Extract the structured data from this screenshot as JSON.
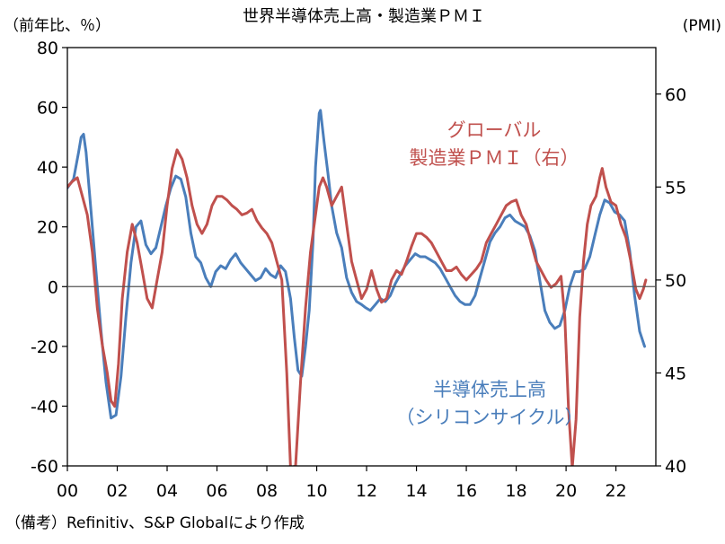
{
  "chart_data": {
    "type": "line",
    "title": "世界半導体売上高・製造業ＰＭＩ",
    "left_unit": "（前年比、％）",
    "right_unit": "(PMI)",
    "x_tick_labels": [
      "00",
      "02",
      "04",
      "06",
      "08",
      "10",
      "12",
      "14",
      "16",
      "18",
      "20",
      "22"
    ],
    "x_ticks": [
      2000,
      2002,
      2004,
      2006,
      2008,
      2010,
      2012,
      2014,
      2016,
      2018,
      2020,
      2022
    ],
    "xlim": [
      2000,
      2023.6
    ],
    "y_left": {
      "lim": [
        -60,
        80
      ],
      "ticks": [
        -60,
        -40,
        -20,
        0,
        20,
        40,
        60,
        80
      ]
    },
    "y_right": {
      "lim": [
        40,
        62.5
      ],
      "ticks": [
        40,
        45,
        50,
        55,
        60
      ]
    },
    "grid": false,
    "zero_line": true,
    "series": [
      {
        "name": "半導体売上高（シリコンサイクル）",
        "label_lines": [
          "半導体売上高",
          "（シリコンサイクル）"
        ],
        "axis": "left",
        "color": "#4a7ebb",
        "points": [
          [
            2000.0,
            33
          ],
          [
            2000.25,
            36
          ],
          [
            2000.45,
            45
          ],
          [
            2000.55,
            50
          ],
          [
            2000.65,
            51
          ],
          [
            2000.75,
            45
          ],
          [
            2000.95,
            25
          ],
          [
            2001.15,
            5
          ],
          [
            2001.35,
            -15
          ],
          [
            2001.55,
            -32
          ],
          [
            2001.75,
            -44
          ],
          [
            2001.95,
            -43
          ],
          [
            2002.15,
            -30
          ],
          [
            2002.35,
            -10
          ],
          [
            2002.55,
            8
          ],
          [
            2002.75,
            20
          ],
          [
            2002.95,
            22
          ],
          [
            2003.15,
            14
          ],
          [
            2003.35,
            11
          ],
          [
            2003.55,
            13
          ],
          [
            2003.75,
            20
          ],
          [
            2003.95,
            27
          ],
          [
            2004.15,
            33
          ],
          [
            2004.35,
            37
          ],
          [
            2004.55,
            36
          ],
          [
            2004.75,
            30
          ],
          [
            2004.95,
            18
          ],
          [
            2005.15,
            10
          ],
          [
            2005.35,
            8
          ],
          [
            2005.55,
            3
          ],
          [
            2005.75,
            0
          ],
          [
            2005.95,
            5
          ],
          [
            2006.15,
            7
          ],
          [
            2006.35,
            6
          ],
          [
            2006.55,
            9
          ],
          [
            2006.75,
            11
          ],
          [
            2006.95,
            8
          ],
          [
            2007.15,
            6
          ],
          [
            2007.35,
            4
          ],
          [
            2007.55,
            2
          ],
          [
            2007.75,
            3
          ],
          [
            2007.95,
            6
          ],
          [
            2008.15,
            4
          ],
          [
            2008.35,
            3
          ],
          [
            2008.55,
            7
          ],
          [
            2008.75,
            5
          ],
          [
            2008.95,
            -4
          ],
          [
            2009.1,
            -17
          ],
          [
            2009.25,
            -28
          ],
          [
            2009.4,
            -30
          ],
          [
            2009.55,
            -20
          ],
          [
            2009.7,
            -8
          ],
          [
            2009.85,
            15
          ],
          [
            2009.95,
            40
          ],
          [
            2010.1,
            58
          ],
          [
            2010.15,
            59
          ],
          [
            2010.3,
            48
          ],
          [
            2010.45,
            38
          ],
          [
            2010.6,
            27
          ],
          [
            2010.8,
            18
          ],
          [
            2011.0,
            13
          ],
          [
            2011.2,
            3
          ],
          [
            2011.4,
            -2
          ],
          [
            2011.6,
            -5
          ],
          [
            2011.8,
            -6
          ],
          [
            2011.95,
            -7
          ],
          [
            2012.15,
            -8
          ],
          [
            2012.35,
            -6
          ],
          [
            2012.55,
            -4
          ],
          [
            2012.75,
            -5
          ],
          [
            2012.95,
            -3
          ],
          [
            2013.15,
            1
          ],
          [
            2013.35,
            4
          ],
          [
            2013.55,
            7
          ],
          [
            2013.75,
            9
          ],
          [
            2013.95,
            11
          ],
          [
            2014.15,
            10
          ],
          [
            2014.35,
            10
          ],
          [
            2014.55,
            9
          ],
          [
            2014.75,
            8
          ],
          [
            2014.95,
            6
          ],
          [
            2015.15,
            3
          ],
          [
            2015.35,
            0
          ],
          [
            2015.55,
            -3
          ],
          [
            2015.75,
            -5
          ],
          [
            2015.95,
            -6
          ],
          [
            2016.15,
            -6
          ],
          [
            2016.35,
            -3
          ],
          [
            2016.55,
            3
          ],
          [
            2016.75,
            9
          ],
          [
            2016.95,
            15
          ],
          [
            2017.15,
            18
          ],
          [
            2017.35,
            20
          ],
          [
            2017.55,
            23
          ],
          [
            2017.75,
            24
          ],
          [
            2017.95,
            22
          ],
          [
            2018.15,
            21
          ],
          [
            2018.35,
            20
          ],
          [
            2018.55,
            17
          ],
          [
            2018.75,
            12
          ],
          [
            2018.95,
            2
          ],
          [
            2019.15,
            -8
          ],
          [
            2019.35,
            -12
          ],
          [
            2019.55,
            -14
          ],
          [
            2019.75,
            -13
          ],
          [
            2019.95,
            -8
          ],
          [
            2020.15,
            0
          ],
          [
            2020.35,
            5
          ],
          [
            2020.55,
            5
          ],
          [
            2020.75,
            6
          ],
          [
            2020.95,
            10
          ],
          [
            2021.15,
            17
          ],
          [
            2021.35,
            24
          ],
          [
            2021.55,
            29
          ],
          [
            2021.75,
            28
          ],
          [
            2021.95,
            25
          ],
          [
            2022.15,
            24
          ],
          [
            2022.35,
            22
          ],
          [
            2022.55,
            12
          ],
          [
            2022.75,
            -3
          ],
          [
            2022.95,
            -15
          ],
          [
            2023.15,
            -20
          ]
        ]
      },
      {
        "name": "グローバル製造業ＰＭＩ（右）",
        "label_lines": [
          "グローバル",
          "製造業ＰＭＩ（右）"
        ],
        "axis": "right",
        "color": "#c0504d",
        "points": [
          [
            2000.0,
            55.0
          ],
          [
            2000.2,
            55.3
          ],
          [
            2000.4,
            55.5
          ],
          [
            2000.6,
            54.5
          ],
          [
            2000.8,
            53.5
          ],
          [
            2001.0,
            51.5
          ],
          [
            2001.2,
            48.5
          ],
          [
            2001.4,
            46.5
          ],
          [
            2001.6,
            45.0
          ],
          [
            2001.75,
            43.5
          ],
          [
            2001.9,
            43.2
          ],
          [
            2002.05,
            45.5
          ],
          [
            2002.2,
            49.0
          ],
          [
            2002.4,
            51.5
          ],
          [
            2002.6,
            53.0
          ],
          [
            2002.8,
            52.0
          ],
          [
            2003.0,
            50.5
          ],
          [
            2003.2,
            49.0
          ],
          [
            2003.4,
            48.5
          ],
          [
            2003.6,
            50.0
          ],
          [
            2003.8,
            51.5
          ],
          [
            2004.0,
            54.0
          ],
          [
            2004.2,
            56.0
          ],
          [
            2004.4,
            57.0
          ],
          [
            2004.6,
            56.5
          ],
          [
            2004.8,
            55.5
          ],
          [
            2005.0,
            54.0
          ],
          [
            2005.2,
            53.0
          ],
          [
            2005.4,
            52.5
          ],
          [
            2005.6,
            53.0
          ],
          [
            2005.8,
            54.0
          ],
          [
            2006.0,
            54.5
          ],
          [
            2006.2,
            54.5
          ],
          [
            2006.4,
            54.3
          ],
          [
            2006.6,
            54.0
          ],
          [
            2006.8,
            53.8
          ],
          [
            2007.0,
            53.5
          ],
          [
            2007.2,
            53.6
          ],
          [
            2007.4,
            53.8
          ],
          [
            2007.6,
            53.2
          ],
          [
            2007.8,
            52.8
          ],
          [
            2008.0,
            52.5
          ],
          [
            2008.2,
            52.0
          ],
          [
            2008.4,
            51.0
          ],
          [
            2008.6,
            50.0
          ],
          [
            2008.8,
            45.0
          ],
          [
            2008.95,
            39.5
          ],
          [
            2009.15,
            40.0
          ],
          [
            2009.35,
            44.5
          ],
          [
            2009.55,
            48.5
          ],
          [
            2009.75,
            51.5
          ],
          [
            2009.95,
            53.5
          ],
          [
            2010.1,
            55.0
          ],
          [
            2010.25,
            55.5
          ],
          [
            2010.4,
            55.0
          ],
          [
            2010.6,
            54.0
          ],
          [
            2010.8,
            54.5
          ],
          [
            2011.0,
            55.0
          ],
          [
            2011.2,
            53.0
          ],
          [
            2011.4,
            51.0
          ],
          [
            2011.6,
            50.0
          ],
          [
            2011.8,
            49.0
          ],
          [
            2012.0,
            49.5
          ],
          [
            2012.2,
            50.5
          ],
          [
            2012.4,
            49.5
          ],
          [
            2012.6,
            48.8
          ],
          [
            2012.8,
            49.0
          ],
          [
            2013.0,
            50.0
          ],
          [
            2013.2,
            50.5
          ],
          [
            2013.4,
            50.3
          ],
          [
            2013.6,
            51.0
          ],
          [
            2013.8,
            51.8
          ],
          [
            2014.0,
            52.5
          ],
          [
            2014.2,
            52.5
          ],
          [
            2014.4,
            52.3
          ],
          [
            2014.6,
            52.0
          ],
          [
            2014.8,
            51.5
          ],
          [
            2015.0,
            51.0
          ],
          [
            2015.2,
            50.5
          ],
          [
            2015.4,
            50.5
          ],
          [
            2015.6,
            50.7
          ],
          [
            2015.8,
            50.3
          ],
          [
            2016.0,
            50.0
          ],
          [
            2016.2,
            50.3
          ],
          [
            2016.4,
            50.6
          ],
          [
            2016.6,
            51.0
          ],
          [
            2016.8,
            52.0
          ],
          [
            2017.0,
            52.5
          ],
          [
            2017.2,
            53.0
          ],
          [
            2017.4,
            53.5
          ],
          [
            2017.6,
            54.0
          ],
          [
            2017.8,
            54.2
          ],
          [
            2018.0,
            54.3
          ],
          [
            2018.2,
            53.5
          ],
          [
            2018.4,
            53.0
          ],
          [
            2018.6,
            52.0
          ],
          [
            2018.8,
            51.0
          ],
          [
            2019.0,
            50.5
          ],
          [
            2019.2,
            50.0
          ],
          [
            2019.4,
            49.6
          ],
          [
            2019.6,
            49.8
          ],
          [
            2019.8,
            50.2
          ],
          [
            2019.95,
            48.0
          ],
          [
            2020.1,
            43.0
          ],
          [
            2020.25,
            39.8
          ],
          [
            2020.4,
            42.5
          ],
          [
            2020.55,
            48.0
          ],
          [
            2020.7,
            51.0
          ],
          [
            2020.85,
            53.0
          ],
          [
            2021.0,
            54.0
          ],
          [
            2021.2,
            54.5
          ],
          [
            2021.35,
            55.5
          ],
          [
            2021.45,
            56.0
          ],
          [
            2021.6,
            55.0
          ],
          [
            2021.8,
            54.2
          ],
          [
            2022.0,
            54.0
          ],
          [
            2022.2,
            53.0
          ],
          [
            2022.4,
            52.3
          ],
          [
            2022.6,
            51.0
          ],
          [
            2022.8,
            49.5
          ],
          [
            2022.95,
            49.0
          ],
          [
            2023.1,
            49.5
          ],
          [
            2023.2,
            50.0
          ]
        ]
      }
    ]
  },
  "note": "（備考）Refinitiv、S&P Globalにより作成"
}
